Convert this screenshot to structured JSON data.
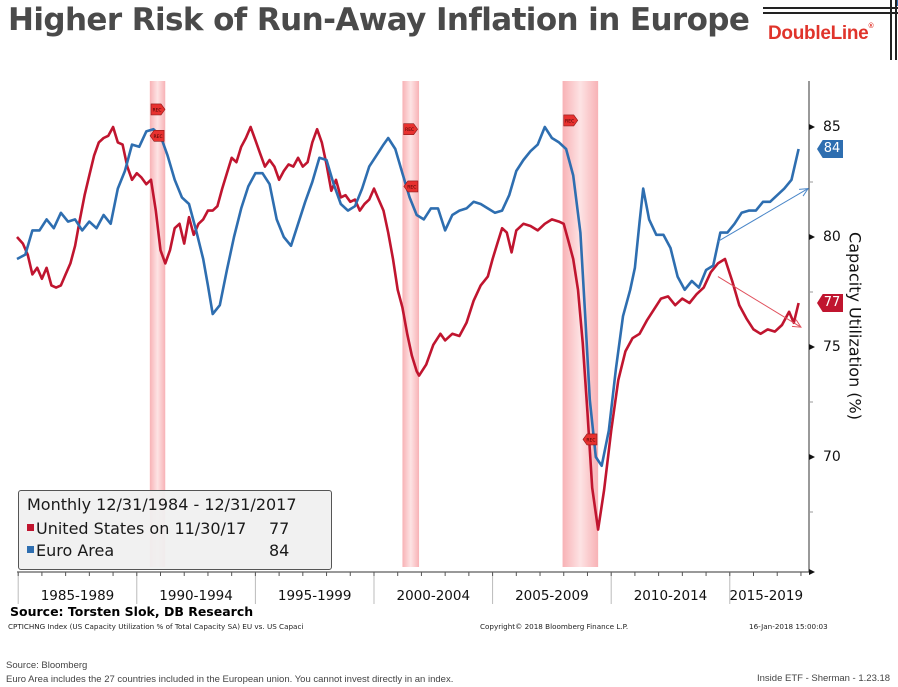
{
  "header": {
    "title": "Higher Risk of Run-Away Inflation in Europe",
    "logo_text": "DoubleLine",
    "logo_mark": "®"
  },
  "legend": {
    "title": "Monthly 12/31/1984 - 12/31/2017",
    "items": [
      {
        "label": "United States on 11/30/17",
        "value": "77",
        "color": "#c0152f"
      },
      {
        "label": "Euro Area",
        "value": "84",
        "color": "#2e6eb0"
      }
    ]
  },
  "end_tags": {
    "us": "77",
    "euro": "84"
  },
  "recession_marker_label": "REC",
  "source_line": "Source: Torsten Slok, DB Research",
  "bloomberg_footer": {
    "index_desc": "CPTICHNG Index (US Capacity Utilization % of Total Capacity SA) EU vs. US Capaci",
    "copyright": "Copyright© 2018 Bloomberg Finance L.P.",
    "timestamp": "16-Jan-2018 15:00:03"
  },
  "page_footer": {
    "source": "Source: Bloomberg",
    "note": "Euro Area includes the 27 countries included in the European union. You cannot invest directly in an index.",
    "right": "Inside ETF - Sherman - 1.23.18"
  },
  "chart_data": {
    "type": "line",
    "title": "Higher Risk of Run-Away Inflation in Europe",
    "xlabel": "",
    "ylabel": "Capacity Utilization (%)",
    "y_axis_side": "right",
    "ylim": [
      65,
      87.1
    ],
    "xlim": [
      1984.95,
      2018.5
    ],
    "yticks": [
      70,
      75,
      80,
      85
    ],
    "ytick_labels": [
      "70",
      "75",
      "80",
      "85"
    ],
    "x_periods": [
      {
        "label": "1985-1989",
        "start": 1985,
        "end": 1990
      },
      {
        "label": "1990-1994",
        "start": 1990,
        "end": 1995
      },
      {
        "label": "1995-1999",
        "start": 1995,
        "end": 2000
      },
      {
        "label": "2000-2004",
        "start": 2000,
        "end": 2005
      },
      {
        "label": "2005-2009",
        "start": 2005,
        "end": 2010
      },
      {
        "label": "2010-2014",
        "start": 2010,
        "end": 2015
      },
      {
        "label": "2015-2019",
        "start": 2015,
        "end": 2018.5
      }
    ],
    "grid": false,
    "legend_position": "bottom-left",
    "recessions": [
      {
        "start": 1990.55,
        "end": 1991.2
      },
      {
        "start": 2001.2,
        "end": 2001.9
      },
      {
        "start": 2007.95,
        "end": 2009.45
      }
    ],
    "rec_markers": [
      {
        "x": 1990.6,
        "y": 85.8,
        "dir": "right"
      },
      {
        "x": 1991.15,
        "y": 84.6,
        "dir": "left"
      },
      {
        "x": 2001.25,
        "y": 84.9,
        "dir": "right"
      },
      {
        "x": 2001.85,
        "y": 82.3,
        "dir": "left"
      },
      {
        "x": 2008.0,
        "y": 85.3,
        "dir": "right"
      },
      {
        "x": 2009.4,
        "y": 70.8,
        "dir": "left"
      }
    ],
    "trend_arrows": [
      {
        "series": "Euro Area",
        "from": [
          2014.5,
          79.8
        ],
        "to": [
          2018.3,
          82.2
        ]
      },
      {
        "series": "United States",
        "from": [
          2014.5,
          78.2
        ],
        "to": [
          2018.0,
          75.9
        ]
      }
    ],
    "series": [
      {
        "name": "United States",
        "color": "#c0152f",
        "last_value": 77,
        "points": [
          [
            1984.95,
            80.0
          ],
          [
            1985.2,
            79.7
          ],
          [
            1985.4,
            79.2
          ],
          [
            1985.6,
            78.3
          ],
          [
            1985.8,
            78.6
          ],
          [
            1986.0,
            78.1
          ],
          [
            1986.2,
            78.6
          ],
          [
            1986.4,
            77.8
          ],
          [
            1986.6,
            77.7
          ],
          [
            1986.8,
            77.8
          ],
          [
            1987.0,
            78.3
          ],
          [
            1987.2,
            78.8
          ],
          [
            1987.4,
            79.6
          ],
          [
            1987.6,
            80.8
          ],
          [
            1987.8,
            81.9
          ],
          [
            1988.0,
            82.8
          ],
          [
            1988.2,
            83.7
          ],
          [
            1988.4,
            84.3
          ],
          [
            1988.6,
            84.5
          ],
          [
            1988.8,
            84.6
          ],
          [
            1989.0,
            85.0
          ],
          [
            1989.2,
            84.3
          ],
          [
            1989.4,
            84.2
          ],
          [
            1989.6,
            83.2
          ],
          [
            1989.8,
            82.6
          ],
          [
            1990.0,
            82.9
          ],
          [
            1990.2,
            82.7
          ],
          [
            1990.4,
            82.4
          ],
          [
            1990.6,
            82.6
          ],
          [
            1990.8,
            81.2
          ],
          [
            1991.0,
            79.4
          ],
          [
            1991.2,
            78.8
          ],
          [
            1991.4,
            79.4
          ],
          [
            1991.6,
            80.4
          ],
          [
            1991.8,
            80.6
          ],
          [
            1992.0,
            79.7
          ],
          [
            1992.2,
            80.9
          ],
          [
            1992.4,
            80.1
          ],
          [
            1992.6,
            80.6
          ],
          [
            1992.8,
            80.8
          ],
          [
            1993.0,
            81.2
          ],
          [
            1993.2,
            81.2
          ],
          [
            1993.4,
            81.4
          ],
          [
            1993.6,
            82.2
          ],
          [
            1993.8,
            82.9
          ],
          [
            1994.0,
            83.6
          ],
          [
            1994.2,
            83.4
          ],
          [
            1994.4,
            84.1
          ],
          [
            1994.6,
            84.5
          ],
          [
            1994.8,
            85.0
          ],
          [
            1995.0,
            84.4
          ],
          [
            1995.2,
            83.8
          ],
          [
            1995.4,
            83.2
          ],
          [
            1995.6,
            83.5
          ],
          [
            1995.8,
            83.2
          ],
          [
            1996.0,
            82.6
          ],
          [
            1996.2,
            83.0
          ],
          [
            1996.4,
            83.3
          ],
          [
            1996.6,
            83.2
          ],
          [
            1996.8,
            83.6
          ],
          [
            1997.0,
            83.2
          ],
          [
            1997.2,
            83.4
          ],
          [
            1997.4,
            84.3
          ],
          [
            1997.6,
            84.9
          ],
          [
            1997.8,
            84.3
          ],
          [
            1998.0,
            83.3
          ],
          [
            1998.2,
            82.1
          ],
          [
            1998.4,
            82.6
          ],
          [
            1998.6,
            81.8
          ],
          [
            1998.8,
            81.9
          ],
          [
            1999.0,
            81.6
          ],
          [
            1999.2,
            81.7
          ],
          [
            1999.4,
            81.2
          ],
          [
            1999.6,
            81.5
          ],
          [
            1999.8,
            81.7
          ],
          [
            2000.0,
            82.2
          ],
          [
            2000.2,
            81.7
          ],
          [
            2000.4,
            81.2
          ],
          [
            2000.6,
            80.2
          ],
          [
            2000.8,
            79.0
          ],
          [
            2001.0,
            77.6
          ],
          [
            2001.2,
            76.8
          ],
          [
            2001.4,
            75.6
          ],
          [
            2001.6,
            74.6
          ],
          [
            2001.8,
            73.9
          ],
          [
            2001.9,
            73.7
          ],
          [
            2002.2,
            74.2
          ],
          [
            2002.5,
            75.1
          ],
          [
            2002.8,
            75.6
          ],
          [
            2003.0,
            75.3
          ],
          [
            2003.3,
            75.6
          ],
          [
            2003.6,
            75.5
          ],
          [
            2003.9,
            76.1
          ],
          [
            2004.2,
            77.1
          ],
          [
            2004.5,
            77.8
          ],
          [
            2004.8,
            78.2
          ],
          [
            2005.0,
            79.0
          ],
          [
            2005.2,
            79.7
          ],
          [
            2005.4,
            80.4
          ],
          [
            2005.6,
            80.2
          ],
          [
            2005.8,
            79.3
          ],
          [
            2006.0,
            80.3
          ],
          [
            2006.3,
            80.6
          ],
          [
            2006.6,
            80.5
          ],
          [
            2006.9,
            80.3
          ],
          [
            2007.2,
            80.6
          ],
          [
            2007.5,
            80.8
          ],
          [
            2007.8,
            80.7
          ],
          [
            2008.0,
            80.6
          ],
          [
            2008.2,
            79.8
          ],
          [
            2008.4,
            79.0
          ],
          [
            2008.6,
            77.6
          ],
          [
            2008.8,
            75.2
          ],
          [
            2009.0,
            72.0
          ],
          [
            2009.2,
            68.6
          ],
          [
            2009.45,
            66.7
          ],
          [
            2009.7,
            68.5
          ],
          [
            2010.0,
            71.2
          ],
          [
            2010.3,
            73.5
          ],
          [
            2010.6,
            74.8
          ],
          [
            2010.9,
            75.4
          ],
          [
            2011.2,
            75.6
          ],
          [
            2011.5,
            76.2
          ],
          [
            2011.8,
            76.7
          ],
          [
            2012.1,
            77.2
          ],
          [
            2012.4,
            77.3
          ],
          [
            2012.7,
            76.9
          ],
          [
            2013.0,
            77.2
          ],
          [
            2013.3,
            77.0
          ],
          [
            2013.6,
            77.4
          ],
          [
            2013.9,
            77.7
          ],
          [
            2014.2,
            78.4
          ],
          [
            2014.5,
            78.8
          ],
          [
            2014.8,
            79.0
          ],
          [
            2015.1,
            78.0
          ],
          [
            2015.4,
            76.9
          ],
          [
            2015.7,
            76.3
          ],
          [
            2016.0,
            75.8
          ],
          [
            2016.3,
            75.6
          ],
          [
            2016.6,
            75.8
          ],
          [
            2016.9,
            75.7
          ],
          [
            2017.2,
            76.0
          ],
          [
            2017.5,
            76.6
          ],
          [
            2017.7,
            76.1
          ],
          [
            2017.9,
            77.0
          ]
        ]
      },
      {
        "name": "Euro Area",
        "color": "#2e6eb0",
        "last_value": 84,
        "points": [
          [
            1984.95,
            79.0
          ],
          [
            1985.3,
            79.2
          ],
          [
            1985.6,
            80.3
          ],
          [
            1985.9,
            80.3
          ],
          [
            1986.2,
            80.8
          ],
          [
            1986.5,
            80.4
          ],
          [
            1986.8,
            81.1
          ],
          [
            1987.1,
            80.7
          ],
          [
            1987.4,
            80.8
          ],
          [
            1987.7,
            80.3
          ],
          [
            1988.0,
            80.7
          ],
          [
            1988.3,
            80.4
          ],
          [
            1988.6,
            81.0
          ],
          [
            1988.9,
            80.6
          ],
          [
            1989.2,
            82.2
          ],
          [
            1989.5,
            83.0
          ],
          [
            1989.8,
            84.2
          ],
          [
            1990.1,
            84.1
          ],
          [
            1990.4,
            84.8
          ],
          [
            1990.7,
            84.9
          ],
          [
            1991.0,
            84.6
          ],
          [
            1991.3,
            83.7
          ],
          [
            1991.6,
            82.6
          ],
          [
            1991.9,
            81.8
          ],
          [
            1992.2,
            81.5
          ],
          [
            1992.5,
            80.3
          ],
          [
            1992.8,
            79.0
          ],
          [
            1993.0,
            77.8
          ],
          [
            1993.2,
            76.5
          ],
          [
            1993.5,
            76.9
          ],
          [
            1993.8,
            78.5
          ],
          [
            1994.1,
            80.0
          ],
          [
            1994.4,
            81.3
          ],
          [
            1994.7,
            82.3
          ],
          [
            1995.0,
            82.9
          ],
          [
            1995.3,
            82.9
          ],
          [
            1995.6,
            82.4
          ],
          [
            1995.9,
            80.8
          ],
          [
            1996.2,
            80.0
          ],
          [
            1996.5,
            79.6
          ],
          [
            1996.8,
            80.6
          ],
          [
            1997.1,
            81.6
          ],
          [
            1997.4,
            82.5
          ],
          [
            1997.7,
            83.6
          ],
          [
            1998.0,
            83.5
          ],
          [
            1998.3,
            82.4
          ],
          [
            1998.6,
            81.5
          ],
          [
            1998.9,
            81.2
          ],
          [
            1999.2,
            81.4
          ],
          [
            1999.5,
            82.2
          ],
          [
            1999.8,
            83.2
          ],
          [
            2000.1,
            83.7
          ],
          [
            2000.4,
            84.2
          ],
          [
            2000.6,
            84.5
          ],
          [
            2000.9,
            84.0
          ],
          [
            2001.2,
            82.9
          ],
          [
            2001.5,
            81.8
          ],
          [
            2001.8,
            81.0
          ],
          [
            2002.1,
            80.8
          ],
          [
            2002.4,
            81.3
          ],
          [
            2002.7,
            81.3
          ],
          [
            2003.0,
            80.3
          ],
          [
            2003.3,
            81.0
          ],
          [
            2003.6,
            81.2
          ],
          [
            2003.9,
            81.3
          ],
          [
            2004.2,
            81.6
          ],
          [
            2004.5,
            81.5
          ],
          [
            2004.8,
            81.3
          ],
          [
            2005.1,
            81.1
          ],
          [
            2005.4,
            81.2
          ],
          [
            2005.7,
            81.9
          ],
          [
            2006.0,
            83.0
          ],
          [
            2006.3,
            83.5
          ],
          [
            2006.6,
            83.9
          ],
          [
            2006.9,
            84.2
          ],
          [
            2007.2,
            85.0
          ],
          [
            2007.5,
            84.5
          ],
          [
            2007.8,
            84.3
          ],
          [
            2008.1,
            84.0
          ],
          [
            2008.4,
            82.8
          ],
          [
            2008.7,
            80.2
          ],
          [
            2008.9,
            76.5
          ],
          [
            2009.1,
            72.6
          ],
          [
            2009.35,
            70.0
          ],
          [
            2009.6,
            69.6
          ],
          [
            2009.9,
            71.2
          ],
          [
            2010.2,
            74.0
          ],
          [
            2010.5,
            76.4
          ],
          [
            2010.8,
            77.6
          ],
          [
            2011.0,
            78.6
          ],
          [
            2011.2,
            80.7
          ],
          [
            2011.35,
            82.2
          ],
          [
            2011.6,
            80.8
          ],
          [
            2011.9,
            80.1
          ],
          [
            2012.2,
            80.1
          ],
          [
            2012.5,
            79.5
          ],
          [
            2012.8,
            78.2
          ],
          [
            2013.1,
            77.6
          ],
          [
            2013.4,
            78.0
          ],
          [
            2013.7,
            77.7
          ],
          [
            2014.0,
            78.5
          ],
          [
            2014.3,
            78.7
          ],
          [
            2014.6,
            80.2
          ],
          [
            2014.9,
            80.2
          ],
          [
            2015.2,
            80.6
          ],
          [
            2015.5,
            81.1
          ],
          [
            2015.8,
            81.2
          ],
          [
            2016.1,
            81.2
          ],
          [
            2016.4,
            81.6
          ],
          [
            2016.7,
            81.6
          ],
          [
            2017.0,
            81.9
          ],
          [
            2017.3,
            82.2
          ],
          [
            2017.6,
            82.6
          ],
          [
            2017.9,
            84.0
          ]
        ]
      }
    ]
  }
}
